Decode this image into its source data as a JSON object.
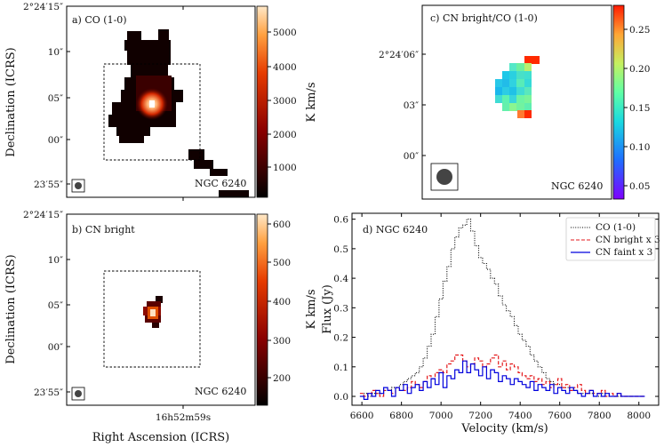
{
  "chart_data": [
    {
      "id": "a",
      "type": "heatmap",
      "title": "a) CO (1-0)",
      "annotation": "NGC 6240",
      "ylabel": "Declination (ICRS)",
      "yticks": [
        "2°24′15″",
        "10″",
        "05″",
        "00″",
        "23′55″"
      ],
      "colorbar": {
        "label": "K km/s",
        "ticks": [
          "1000",
          "2000",
          "3000",
          "4000",
          "5000"
        ],
        "range": [
          0,
          5700
        ]
      }
    },
    {
      "id": "b",
      "type": "heatmap",
      "title": "b) CN bright",
      "annotation": "NGC 6240",
      "ylabel": "Declination (ICRS)",
      "xlabel": "Right Ascension (ICRS)",
      "xticks": [
        "16h52m59s"
      ],
      "yticks": [
        "2°24′15″",
        "10″",
        "05″",
        "00″",
        "23′55″"
      ],
      "colorbar": {
        "label": "K km/s",
        "ticks": [
          "200",
          "300",
          "400",
          "500",
          "600"
        ],
        "range": [
          130,
          630
        ]
      }
    },
    {
      "id": "c",
      "type": "heatmap",
      "title": "c) CN bright/CO (1-0)",
      "annotation": "NGC 6240",
      "yticks": [
        "2°24′06″",
        "03″",
        "00″"
      ],
      "colorbar": {
        "label": "",
        "ticks": [
          "0.05",
          "0.10",
          "0.15",
          "0.20",
          "0.25"
        ],
        "range": [
          0.03,
          0.28
        ]
      }
    },
    {
      "id": "d",
      "type": "line",
      "title": "d) NGC 6240",
      "xlabel": "Velocity (km/s)",
      "ylabel": "Flux (Jy)",
      "xlim": [
        6550,
        8100
      ],
      "ylim": [
        -0.03,
        0.62
      ],
      "xticks": [
        6600,
        6800,
        7000,
        7200,
        7400,
        7600,
        7800,
        8000
      ],
      "yticks": [
        0.0,
        0.1,
        0.2,
        0.3,
        0.4,
        0.5,
        0.6
      ],
      "x": [
        6600,
        6620,
        6640,
        6660,
        6680,
        6700,
        6720,
        6740,
        6760,
        6780,
        6800,
        6820,
        6840,
        6860,
        6880,
        6900,
        6920,
        6940,
        6960,
        6980,
        7000,
        7020,
        7040,
        7060,
        7080,
        7100,
        7120,
        7140,
        7160,
        7180,
        7200,
        7220,
        7240,
        7260,
        7280,
        7300,
        7320,
        7340,
        7360,
        7380,
        7400,
        7420,
        7440,
        7460,
        7480,
        7500,
        7520,
        7540,
        7560,
        7580,
        7600,
        7620,
        7640,
        7660,
        7680,
        7700,
        7720,
        7740,
        7760,
        7780,
        7800,
        7820,
        7840,
        7860,
        7880,
        7900,
        7920,
        7940,
        7960,
        7980,
        8000,
        8020
      ],
      "series": [
        {
          "name": "CO (1-0)",
          "color": "#000000",
          "style": "dotted",
          "values": [
            0.0,
            0.01,
            0.0,
            0.01,
            0.01,
            0.01,
            0.02,
            0.02,
            0.03,
            0.03,
            0.04,
            0.05,
            0.06,
            0.07,
            0.08,
            0.1,
            0.13,
            0.17,
            0.21,
            0.27,
            0.33,
            0.39,
            0.44,
            0.5,
            0.54,
            0.57,
            0.58,
            0.6,
            0.56,
            0.51,
            0.47,
            0.45,
            0.43,
            0.4,
            0.38,
            0.34,
            0.31,
            0.29,
            0.27,
            0.24,
            0.21,
            0.19,
            0.17,
            0.14,
            0.12,
            0.1,
            0.08,
            0.06,
            0.05,
            0.04,
            0.04,
            0.03,
            0.03,
            0.02,
            0.02,
            0.01,
            0.01,
            0.01,
            0.01,
            0.0,
            0.0,
            0.01,
            0.0,
            0.0,
            0.0,
            0.0,
            0.0,
            0.0,
            0.0,
            0.0,
            0.0,
            0.0
          ]
        },
        {
          "name": "CN bright x 3",
          "color": "#e41a1c",
          "style": "dashed",
          "values": [
            0.01,
            0.0,
            0.01,
            0.02,
            0.01,
            0.0,
            0.02,
            0.02,
            0.01,
            0.03,
            0.02,
            0.02,
            0.03,
            0.05,
            0.04,
            0.03,
            0.05,
            0.07,
            0.06,
            0.08,
            0.09,
            0.08,
            0.11,
            0.12,
            0.14,
            0.14,
            0.12,
            0.1,
            0.11,
            0.13,
            0.12,
            0.1,
            0.11,
            0.13,
            0.14,
            0.1,
            0.12,
            0.09,
            0.11,
            0.1,
            0.08,
            0.07,
            0.06,
            0.07,
            0.05,
            0.06,
            0.04,
            0.05,
            0.03,
            0.04,
            0.06,
            0.03,
            0.04,
            0.02,
            0.03,
            0.04,
            0.02,
            0.01,
            0.02,
            0.01,
            0.01,
            0.02,
            0.0,
            0.01,
            0.0,
            0.01,
            0.0,
            0.0,
            0.0,
            0.0,
            0.0,
            0.0
          ]
        },
        {
          "name": "CN faint x 3",
          "color": "#0000dd",
          "style": "solid",
          "values": [
            0.0,
            -0.01,
            0.01,
            0.0,
            0.02,
            0.01,
            0.03,
            0.02,
            0.0,
            0.03,
            0.02,
            0.04,
            0.01,
            0.03,
            0.04,
            0.02,
            0.05,
            0.03,
            0.06,
            0.04,
            0.08,
            0.03,
            0.07,
            0.06,
            0.09,
            0.08,
            0.12,
            0.08,
            0.11,
            0.09,
            0.07,
            0.1,
            0.06,
            0.09,
            0.08,
            0.05,
            0.07,
            0.06,
            0.04,
            0.06,
            0.05,
            0.04,
            0.03,
            0.05,
            0.02,
            0.04,
            0.03,
            0.02,
            0.04,
            0.01,
            0.03,
            0.02,
            0.01,
            0.03,
            0.02,
            0.01,
            0.0,
            0.01,
            0.02,
            0.0,
            0.01,
            0.0,
            0.01,
            0.0,
            0.0,
            0.01,
            0.0,
            0.0,
            0.0,
            0.0,
            0.0,
            0.0
          ]
        }
      ]
    }
  ]
}
